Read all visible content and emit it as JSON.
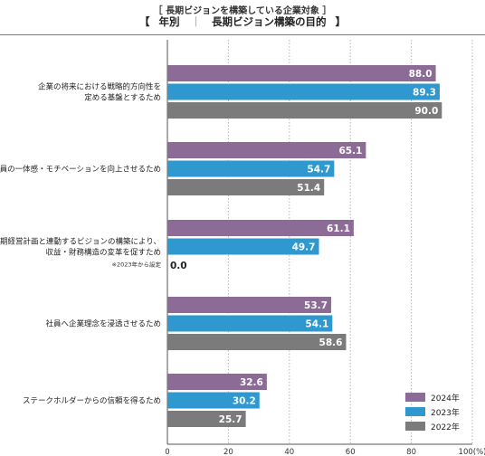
{
  "header": {
    "subtitle_open": "［",
    "subtitle": "長期ビジョンを構築している企業対象",
    "subtitle_close": "］",
    "title_open": "【",
    "title_left": "年別",
    "title_sep": "｜",
    "title_right": "長期ビジョン構築の目的",
    "title_close": "】"
  },
  "colors": {
    "2024年": "#8c6b97",
    "2023年": "#2f98cf",
    "2022年": "#7b7b7b"
  },
  "chart_data": {
    "type": "bar",
    "orientation": "horizontal",
    "title": "長期ビジョン構築の目的",
    "categories": [
      [
        "企業の将来における戦略的方向性を",
        "定める基盤とするため"
      ],
      [
        "社員の一体感・モチベーションを向上させるため"
      ],
      [
        "長期経営計画と連動するビジョンの構築により、",
        "収益・財務構造の変革を促すため"
      ],
      [
        "社員へ企業理念を浸透させるため"
      ],
      [
        "ステークホルダーからの信頼を得るため"
      ]
    ],
    "notes": [
      "",
      "",
      "※2023年から設定",
      "",
      ""
    ],
    "series": [
      {
        "name": "2024年",
        "values": [
          88.0,
          65.1,
          61.1,
          53.7,
          32.6
        ]
      },
      {
        "name": "2023年",
        "values": [
          89.3,
          54.7,
          49.7,
          54.1,
          30.2
        ]
      },
      {
        "name": "2022年",
        "values": [
          90.0,
          51.4,
          0.0,
          58.6,
          25.7
        ]
      }
    ],
    "xlim": [
      0,
      100
    ],
    "xticks": [
      "0",
      "20",
      "40",
      "60",
      "80",
      "100(%)"
    ],
    "grid": true,
    "legend_position": "bottom-right"
  }
}
